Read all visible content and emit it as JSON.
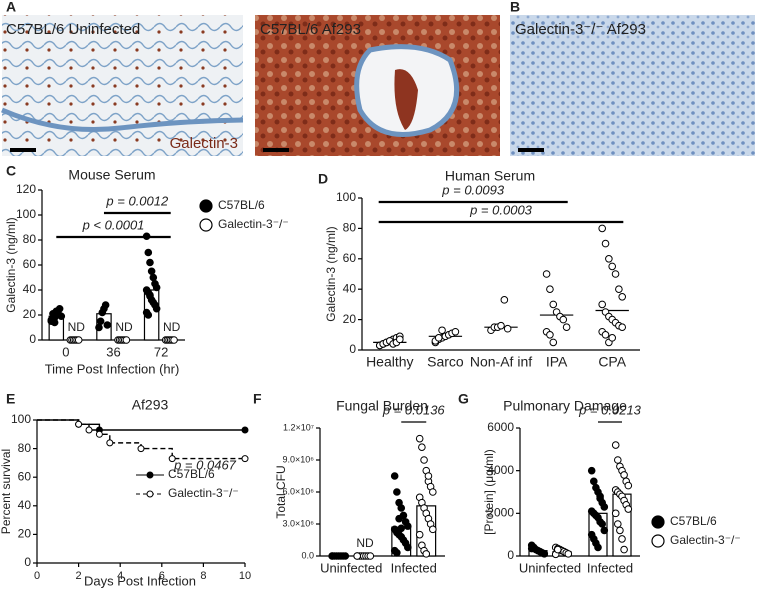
{
  "images": [
    {
      "panel": "A",
      "title": "C57BL/6 Uninfected",
      "caption": "Galectin-3"
    },
    {
      "title": "C57BL/6 Af293"
    },
    {
      "panel": "B",
      "title": "Galectin-3⁻/⁻ Af293"
    }
  ],
  "chart_data": [
    {
      "type": "dot-bar",
      "panel": "C",
      "title": "Mouse Serum",
      "xlabel": "Time Post Infection (hr)",
      "ylabel": "Galectin-3 (ng/ml)",
      "categories": [
        "0",
        "36",
        "72"
      ],
      "ylim": [
        0,
        120
      ],
      "yticks": [
        0,
        20,
        40,
        60,
        80,
        100,
        120
      ],
      "series": [
        {
          "name": "C57BL/6",
          "color": "#000000",
          "values": [
            19,
            21,
            40
          ],
          "points": [
            [
              15,
              17,
              18,
              20,
              22,
              25,
              19,
              16,
              21,
              14,
              23
            ],
            [
              10,
              15,
              22,
              25,
              28,
              12
            ],
            [
              83,
              70,
              62,
              55,
              50,
              45,
              42,
              40,
              38,
              35,
              32,
              30,
              28,
              25,
              22,
              20,
              36
            ]
          ]
        },
        {
          "name": "Galectin-3⁻/⁻",
          "color": "#ffffff",
          "values": [
            null,
            null,
            null
          ],
          "points": [
            [
              0,
              0,
              0,
              0,
              0,
              0
            ],
            [
              0,
              0,
              0,
              0,
              0,
              0
            ],
            [
              0,
              0,
              0,
              0,
              0,
              0
            ]
          ]
        }
      ],
      "annotations": [
        "p < 0.0001",
        "p = 0.0012",
        "ND",
        "ND",
        "ND"
      ]
    },
    {
      "type": "dot",
      "panel": "D",
      "title": "Human Serum",
      "ylabel": "Galectin-3 (ng/ml)",
      "categories": [
        "Healthy",
        "Sarco",
        "Non-Af inf",
        "IPA",
        "CPA"
      ],
      "ylim": [
        0,
        100
      ],
      "yticks": [
        0,
        20,
        40,
        60,
        80,
        100
      ],
      "series": [
        {
          "color": "#ffffff",
          "values": [
            5,
            9,
            15,
            23,
            26
          ],
          "points": [
            [
              3,
              4,
              5,
              6,
              7,
              8,
              9,
              3,
              4,
              5,
              6,
              4,
              5,
              7
            ],
            [
              5,
              7,
              8,
              9,
              10,
              11,
              12,
              6,
              8,
              13
            ],
            [
              13,
              15,
              15,
              16,
              33,
              14
            ],
            [
              50,
              40,
              30,
              25,
              22,
              20,
              15,
              12,
              10,
              5
            ],
            [
              80,
              70,
              60,
              55,
              50,
              40,
              35,
              30,
              25,
              22,
              20,
              18,
              16,
              15,
              12,
              10,
              5,
              8
            ]
          ]
        }
      ],
      "annotations": [
        "p = 0.0093",
        "p = 0.0003"
      ]
    },
    {
      "type": "survival",
      "panel": "E",
      "title": "Af293",
      "xlabel": "Days Post Infection",
      "ylabel": "Percent survival",
      "xlim": [
        0,
        10
      ],
      "xticks": [
        0,
        2,
        4,
        6,
        8,
        10
      ],
      "ylim": [
        0,
        100
      ],
      "yticks": [
        0,
        20,
        40,
        60,
        80,
        100
      ],
      "series": [
        {
          "name": "C57BL/6",
          "color": "#000000",
          "dashed": false,
          "x": [
            0,
            2,
            2,
            3,
            3,
            10
          ],
          "values": [
            100,
            100,
            97,
            97,
            93,
            93
          ]
        },
        {
          "name": "Galectin-3⁻/⁻",
          "color": "#ffffff",
          "dashed": true,
          "x": [
            0,
            2,
            2,
            2.5,
            2.5,
            3,
            3,
            3.5,
            3.5,
            5,
            5,
            6.5,
            6.5,
            10
          ],
          "values": [
            100,
            100,
            97,
            97,
            93,
            93,
            90,
            90,
            84,
            84,
            80,
            80,
            73,
            73
          ]
        }
      ],
      "annotations": [
        "p = 0.0467"
      ]
    },
    {
      "type": "dot-bar",
      "panel": "F",
      "title": "Fungal Burden",
      "ylabel": "Total CFU",
      "categories": [
        "Uninfected",
        "Infected"
      ],
      "ylim": [
        0,
        12000000
      ],
      "yticks": [
        {
          "value": 0,
          "label": "0.0"
        },
        {
          "value": 3000000,
          "label": "3.0×10⁶"
        },
        {
          "value": 6000000,
          "label": "6.0×10⁶"
        },
        {
          "value": 9000000,
          "label": "9.0×10⁶"
        },
        {
          "value": 12000000,
          "label": "1.2×10⁷"
        }
      ],
      "series": [
        {
          "name": "C57BL/6",
          "color": "#000000",
          "values": [
            0,
            2700000
          ],
          "points": [
            [
              0,
              0,
              0,
              0,
              0,
              0,
              0,
              0
            ],
            [
              7500000,
              6000000,
              5000000,
              4500000,
              3800000,
              3200000,
              2800000,
              2500000,
              2200000,
              2000000,
              1800000,
              1500000,
              1200000,
              800000,
              500000,
              300000,
              3500000,
              2600000
            ]
          ]
        },
        {
          "name": "Galectin-3⁻/⁻",
          "color": "#ffffff",
          "values": [
            0,
            4700000
          ],
          "points": [
            [
              0,
              0,
              0,
              0,
              0,
              0,
              0,
              0
            ],
            [
              11000000,
              10200000,
              9000000,
              8000000,
              7000000,
              6500000,
              6000000,
              5500000,
              5000000,
              4500000,
              4000000,
              3500000,
              3000000,
              2500000,
              2000000,
              1000000,
              500000,
              200000,
              7500000
            ]
          ]
        }
      ],
      "annotations": [
        "ND",
        "p = 0.0136"
      ]
    },
    {
      "type": "dot-bar",
      "panel": "G",
      "title": "Pulmonary Damage",
      "ylabel": "[Protein] (μg/ml)",
      "categories": [
        "Uninfected",
        "Infected"
      ],
      "ylim": [
        0,
        6000
      ],
      "yticks": [
        0,
        2000,
        4000,
        6000
      ],
      "series": [
        {
          "name": "C57BL/6",
          "color": "#000000",
          "values": [
            250,
            2000
          ],
          "points": [
            [
              500,
              400,
              300,
              250,
              200,
              150,
              100,
              350
            ],
            [
              4000,
              3500,
              3200,
              3000,
              2800,
              2500,
              2300,
              2100,
              2000,
              1900,
              1800,
              1600,
              1500,
              1200,
              1000,
              800,
              600,
              400,
              2700
            ]
          ]
        },
        {
          "name": "Galectin-3⁻/⁻",
          "color": "#ffffff",
          "values": [
            200,
            2900
          ],
          "points": [
            [
              400,
              350,
              300,
              250,
              200,
              150,
              100,
              80,
              300
            ],
            [
              5200,
              4500,
              4200,
              4000,
              3800,
              3500,
              3300,
              3100,
              3000,
              2900,
              2800,
              2600,
              2400,
              2200,
              2000,
              1500,
              1200,
              800,
              300
            ]
          ]
        }
      ],
      "annotations": [
        "p = 0.0213"
      ]
    }
  ]
}
